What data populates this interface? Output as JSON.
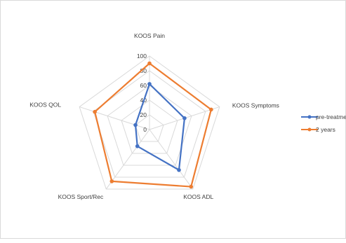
{
  "chart_data": {
    "type": "radar",
    "categories": [
      "KOOS Pain",
      "KOOS Symptoms",
      "KOOS ADL",
      "KOOS Sport/Rec",
      "KOOS QOL"
    ],
    "series": [
      {
        "name": "pre-treatme",
        "values": [
          62,
          50,
          68,
          28,
          20
        ],
        "color": "#4472c4"
      },
      {
        "name": "2 years",
        "values": [
          90,
          88,
          96,
          87,
          78
        ],
        "color": "#ed7d31"
      }
    ],
    "r_ticks": [
      "0",
      "20",
      "40",
      "60",
      "80",
      "100"
    ],
    "rlim": [
      0,
      100
    ],
    "legend_position": "right",
    "grid": true
  }
}
